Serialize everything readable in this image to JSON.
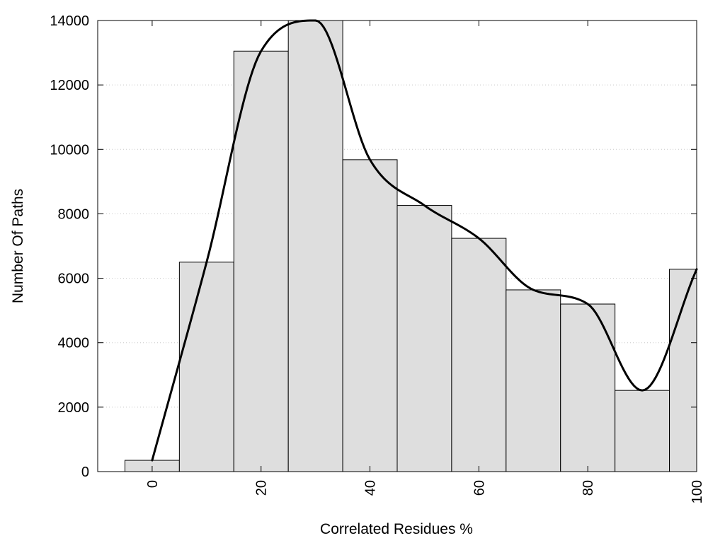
{
  "chart_data": {
    "type": "bar",
    "xlabel": "Correlated Residues %",
    "ylabel": "Number Of Paths",
    "xlim": [
      -10,
      100
    ],
    "ylim": [
      0,
      14000
    ],
    "x_ticks": [
      0,
      20,
      40,
      60,
      80,
      100
    ],
    "y_ticks": [
      0,
      2000,
      4000,
      6000,
      8000,
      10000,
      12000,
      14000
    ],
    "grid": "horizontal dotted",
    "bar_width": 10,
    "bar_color": "#dedede",
    "categories": [
      0,
      10,
      20,
      30,
      40,
      50,
      60,
      70,
      80,
      90,
      100
    ],
    "values": [
      350,
      6500,
      13050,
      14000,
      9680,
      8260,
      7240,
      5640,
      5200,
      2520,
      6280
    ],
    "line": {
      "x": [
        0,
        10,
        20,
        30,
        40,
        50,
        60,
        70,
        80,
        90,
        100
      ],
      "y": [
        350,
        6500,
        13050,
        14000,
        9680,
        8260,
        7240,
        5640,
        5200,
        2520,
        6280
      ],
      "color": "#000000",
      "smooth": true
    }
  }
}
